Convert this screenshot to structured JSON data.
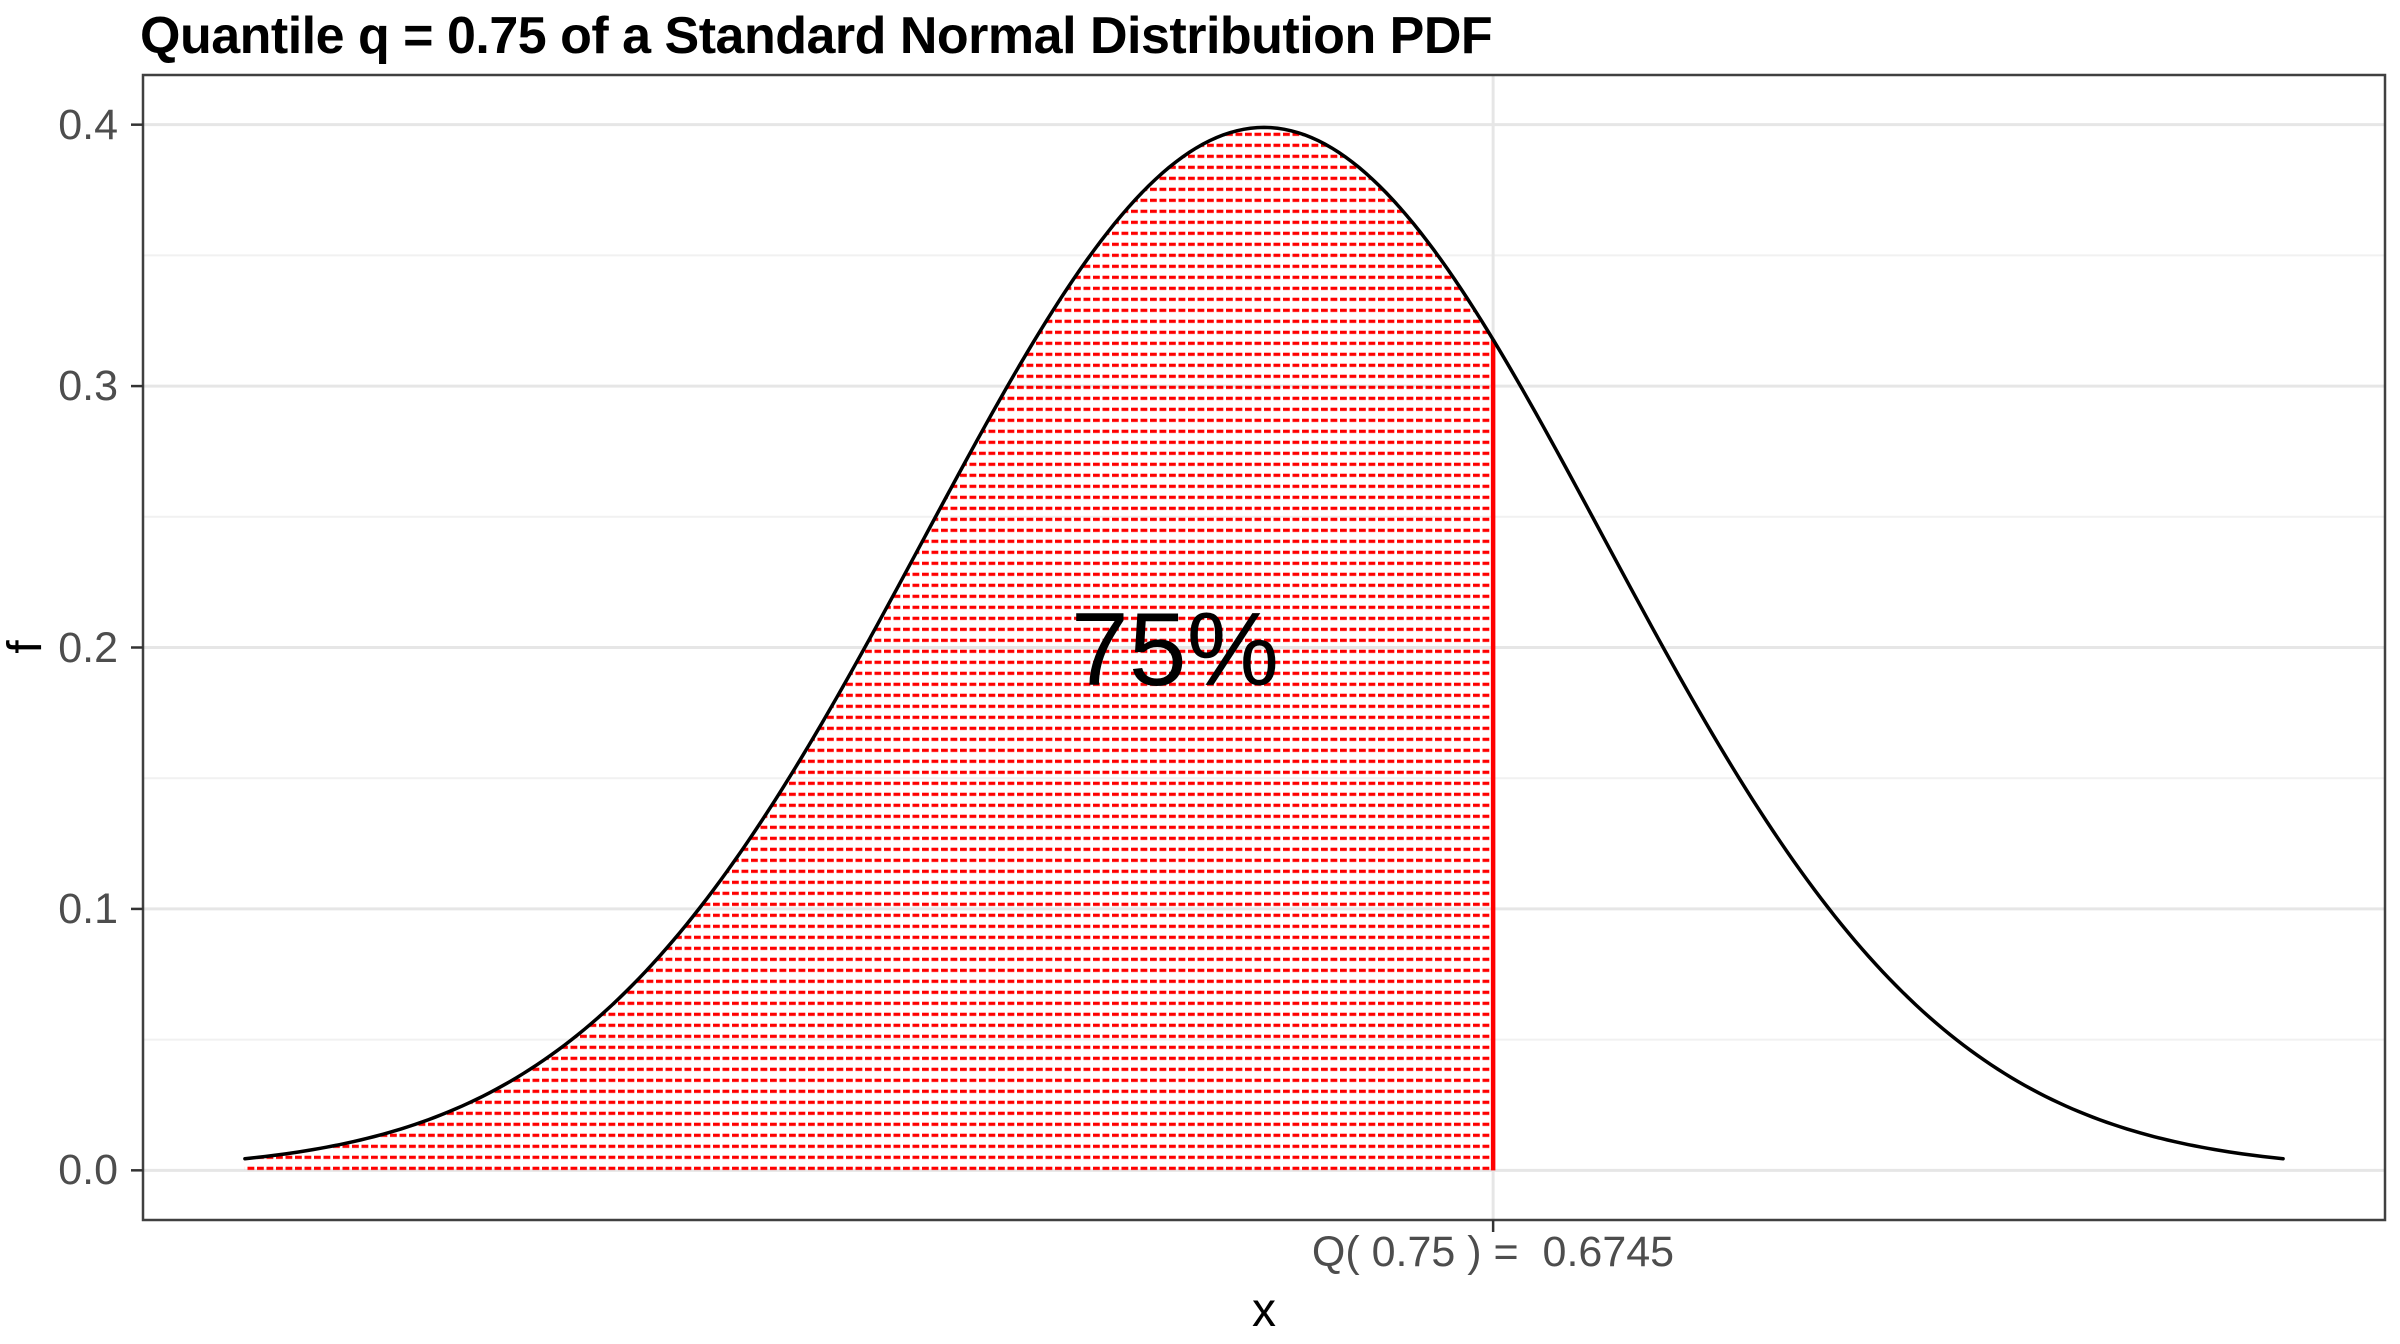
{
  "chart_data": {
    "type": "area",
    "title": "Quantile q = 0.75 of a Standard Normal Distribution PDF",
    "xlabel": "x",
    "ylabel": "f",
    "legend": "none",
    "grid": "on",
    "distribution": {
      "name": "standard normal",
      "mean": 0,
      "sd": 1
    },
    "curve_domain": [
      -3,
      3
    ],
    "xlim": [
      -3.3,
      3.3
    ],
    "ylim": [
      -0.019,
      0.419
    ],
    "yticks": [
      {
        "value": 0.0,
        "label": "0.0"
      },
      {
        "value": 0.1,
        "label": "0.1"
      },
      {
        "value": 0.2,
        "label": "0.2"
      },
      {
        "value": 0.3,
        "label": "0.3"
      },
      {
        "value": 0.4,
        "label": "0.4"
      }
    ],
    "y_minor_gridlines": [
      0.05,
      0.15,
      0.25,
      0.35
    ],
    "xticks": [
      {
        "value": 0.6745,
        "label": "Q( 0.75 ) =  0.6745"
      }
    ],
    "quantile": {
      "q": 0.75,
      "value": 0.6745,
      "area_label": "75%"
    },
    "shaded_region": {
      "from": -3,
      "to": 0.6745,
      "baseline": 0,
      "fill_style": "horizontal-dashed-red-stripes",
      "right_edge_line": true
    },
    "annotation": {
      "text": "75%",
      "x": -0.26,
      "y": 0.2
    },
    "series": [
      {
        "name": "standard normal pdf",
        "x": [
          -3,
          -2.75,
          -2.5,
          -2.25,
          -2,
          -1.75,
          -1.5,
          -1.25,
          -1,
          -0.75,
          -0.5,
          -0.25,
          0,
          0.25,
          0.5,
          0.75,
          1,
          1.25,
          1.5,
          1.75,
          2,
          2.25,
          2.5,
          2.75,
          3
        ],
        "y": [
          0.0044,
          0.0091,
          0.0175,
          0.0317,
          0.054,
          0.0863,
          0.1295,
          0.1826,
          0.242,
          0.3011,
          0.3521,
          0.3867,
          0.3989,
          0.3867,
          0.3521,
          0.3011,
          0.242,
          0.1826,
          0.1295,
          0.0863,
          0.054,
          0.0317,
          0.0175,
          0.0091,
          0.0044
        ]
      }
    ],
    "colors": {
      "curve": "#000000",
      "shade": "#FF0000",
      "grid_major": "#E6E6E6",
      "grid_minor": "#F1F1F1",
      "panel_border": "#404040",
      "tick_mark": "#333333",
      "tick_label": "#4D4D4D",
      "title": "#000000",
      "area_label": "#000000",
      "background": "#FFFFFF"
    }
  }
}
